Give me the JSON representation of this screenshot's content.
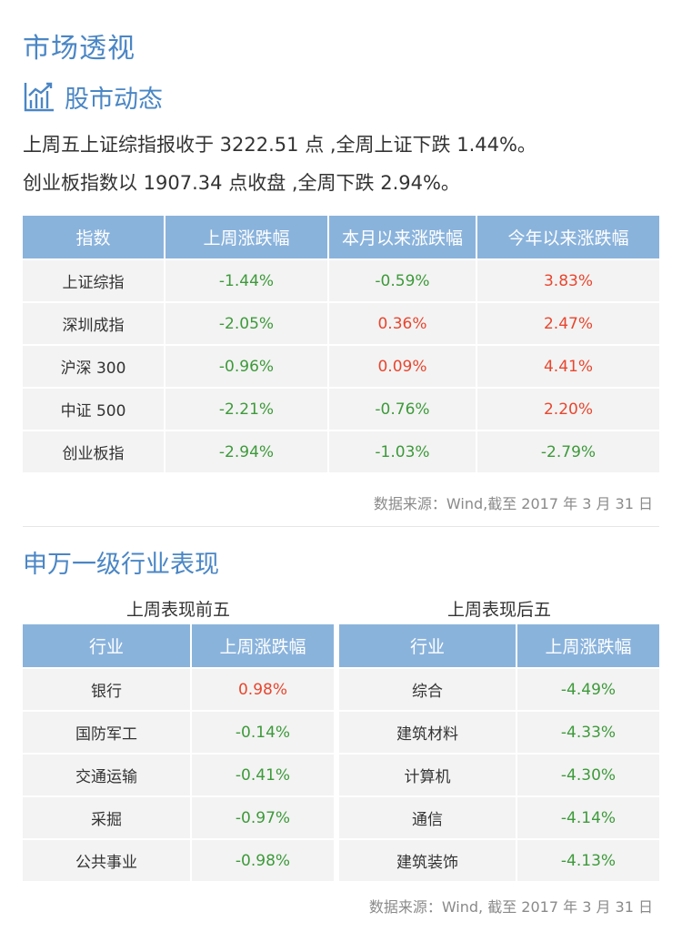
{
  "header": {
    "page_title": "市场透视",
    "section_title": "股市动态",
    "section_icon": "bar-chart-trend-icon"
  },
  "summary": {
    "line1": "上周五上证综指报收于 3222.51 点 ,全周上证下跌 1.44%。",
    "line2": "创业板指数以 1907.34 点收盘 ,全周下跌 2.94%。"
  },
  "index_table": {
    "headers": [
      "指数",
      "上周涨跌幅",
      "本月以来涨跌幅",
      "今年以来涨跌幅"
    ],
    "rows": [
      {
        "name": "上证综指",
        "week": "-1.44%",
        "month": "-0.59%",
        "year": "3.83%"
      },
      {
        "name": "深圳成指",
        "week": "-2.05%",
        "month": "0.36%",
        "year": "2.47%"
      },
      {
        "name": "沪深 300",
        "week": "-0.96%",
        "month": "0.09%",
        "year": "4.41%"
      },
      {
        "name": "中证 500",
        "week": "-2.21%",
        "month": "-0.76%",
        "year": "2.20%"
      },
      {
        "name": "创业板指",
        "week": "-2.94%",
        "month": "-1.03%",
        "year": "-2.79%"
      }
    ]
  },
  "source1": "数据来源：Wind,截至 2017 年 3 月 31 日",
  "section2_title": "申万一级行业表现",
  "top_five": {
    "title": "上周表现前五",
    "headers": [
      "行业",
      "上周涨跌幅"
    ],
    "rows": [
      {
        "name": "银行",
        "value": "0.98%"
      },
      {
        "name": "国防军工",
        "value": "-0.14%"
      },
      {
        "name": "交通运输",
        "value": "-0.41%"
      },
      {
        "name": "采掘",
        "value": "-0.97%"
      },
      {
        "name": "公共事业",
        "value": "-0.98%"
      }
    ]
  },
  "bottom_five": {
    "title": "上周表现后五",
    "headers": [
      "行业",
      "上周涨跌幅"
    ],
    "rows": [
      {
        "name": "综合",
        "value": "-4.49%"
      },
      {
        "name": "建筑材料",
        "value": "-4.33%"
      },
      {
        "name": "计算机",
        "value": "-4.30%"
      },
      {
        "name": "通信",
        "value": "-4.14%"
      },
      {
        "name": "建筑装饰",
        "value": "-4.13%"
      }
    ]
  },
  "source2": "数据来源：Wind, 截至 2017 年 3 月 31 日",
  "colors": {
    "accent": "#4a86c5",
    "header_bg": "#8ab3dc",
    "row_bg": "#f3f3f3",
    "negative": "#3d9a3a",
    "positive": "#e8462e"
  }
}
